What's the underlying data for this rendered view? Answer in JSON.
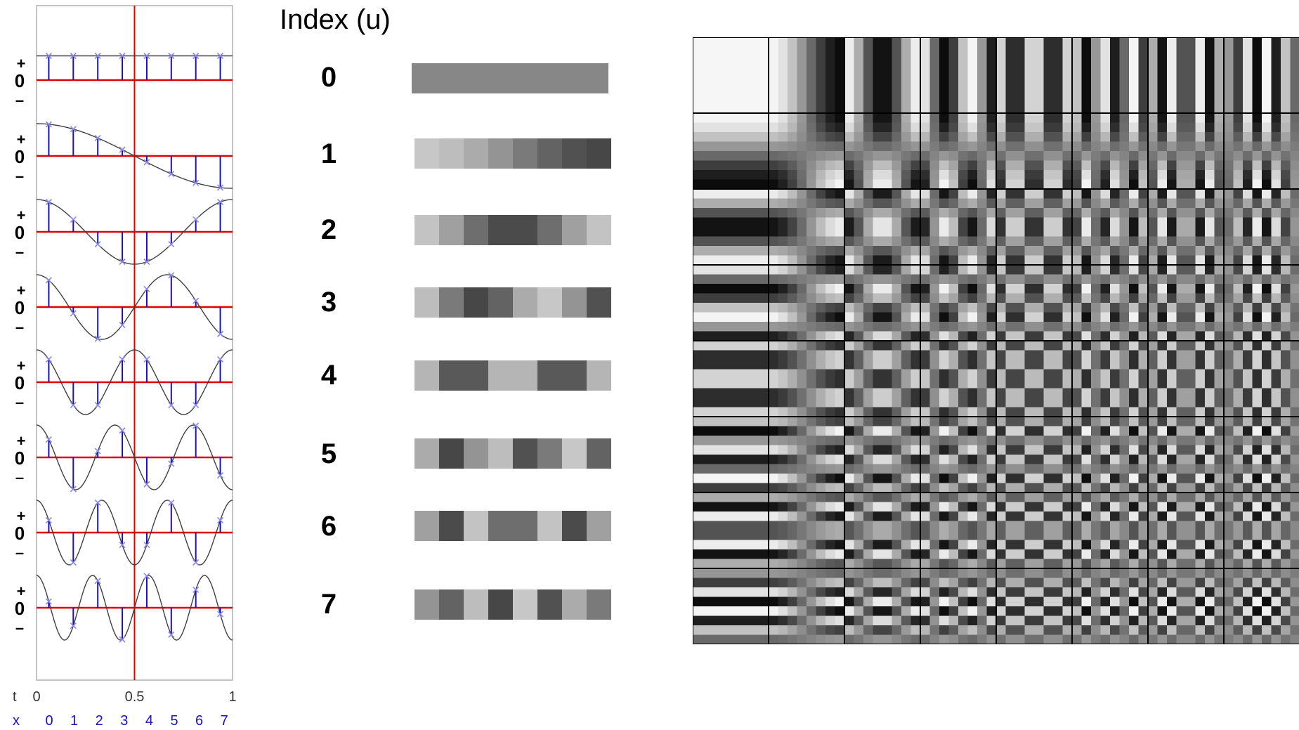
{
  "index_title": "Index (u)",
  "indices": [
    "0",
    "1",
    "2",
    "3",
    "4",
    "5",
    "6",
    "7"
  ],
  "plot": {
    "sign_plus": "+",
    "sign_zero": "0",
    "sign_minus": "–",
    "t_label": "t",
    "t_ticks": [
      "0",
      "0.5",
      "1"
    ],
    "x_label": "x",
    "x_ticks": [
      "0",
      "1",
      "2",
      "3",
      "4",
      "5",
      "6",
      "7"
    ],
    "colors": {
      "axis": "#e00000",
      "stem": "#1a10c8",
      "marker": "#8a8ae0",
      "curve": "#404040",
      "frame": "#b0b0b0"
    }
  },
  "bars": {
    "grid_color": "#000000"
  }
}
